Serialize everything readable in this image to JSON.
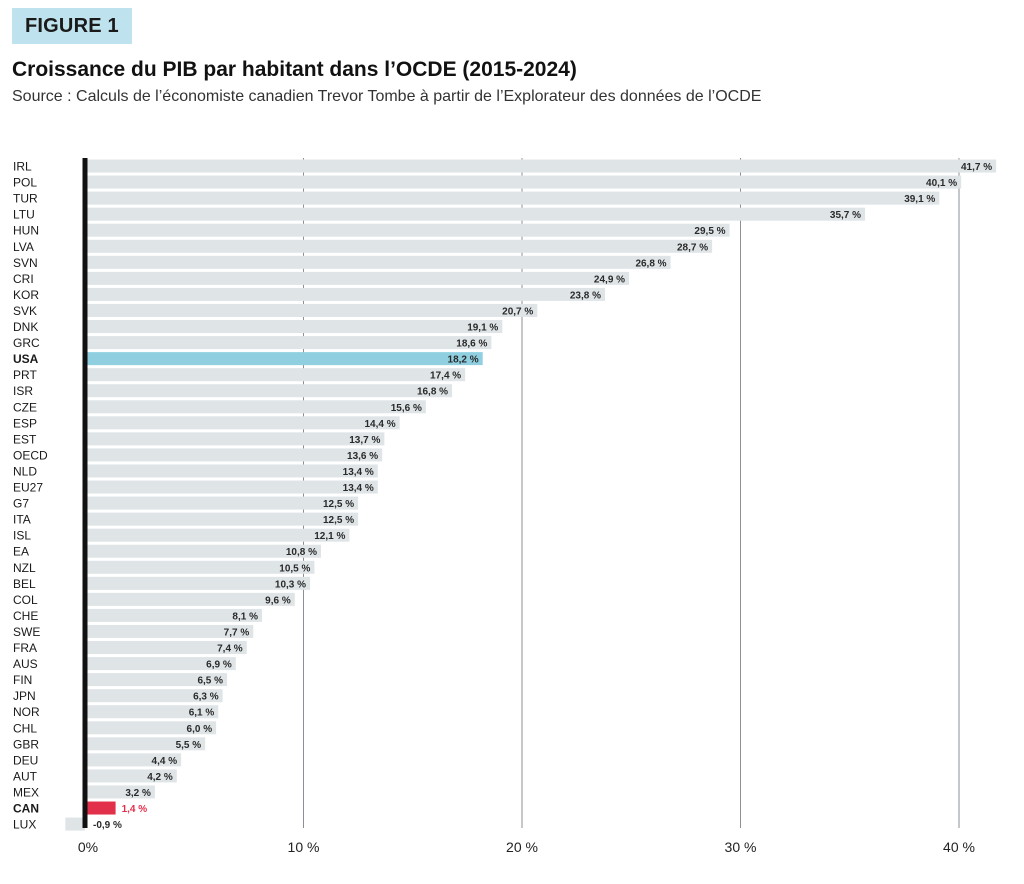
{
  "figure_label": "FIGURE 1",
  "title": "Croissance du PIB par habitant dans l’OCDE (2015-2024)",
  "subtitle": "Source : Calculs de l’économiste canadien Trevor Tombe à partir de l’Explorateur des données de l’OCDE",
  "colors": {
    "bar_default": "#dfe4e7",
    "bar_usa": "#8fcfe0",
    "bar_can": "#e3304a",
    "label_can": "#e3304a",
    "axis_zero": "#111111",
    "grid": "#8a9096",
    "figure_label_bg": "#bfe3ee"
  },
  "chart_data": {
    "type": "bar",
    "orientation": "horizontal",
    "categories": [
      "IRL",
      "POL",
      "TUR",
      "LTU",
      "HUN",
      "LVA",
      "SVN",
      "CRI",
      "KOR",
      "SVK",
      "DNK",
      "GRC",
      "USA",
      "PRT",
      "ISR",
      "CZE",
      "ESP",
      "EST",
      "OECD",
      "NLD",
      "EU27",
      "G7",
      "ITA",
      "ISL",
      "EA",
      "NZL",
      "BEL",
      "COL",
      "CHE",
      "SWE",
      "FRA",
      "AUS",
      "FIN",
      "JPN",
      "NOR",
      "CHL",
      "GBR",
      "DEU",
      "AUT",
      "MEX",
      "CAN",
      "LUX"
    ],
    "values": [
      41.7,
      40.1,
      39.1,
      35.7,
      29.5,
      28.7,
      26.8,
      24.9,
      23.8,
      20.7,
      19.1,
      18.6,
      18.2,
      17.4,
      16.8,
      15.6,
      14.4,
      13.7,
      13.6,
      13.4,
      13.4,
      12.5,
      12.5,
      12.1,
      10.8,
      10.5,
      10.3,
      9.6,
      8.1,
      7.7,
      7.4,
      6.9,
      6.5,
      6.3,
      6.1,
      6.0,
      5.5,
      4.4,
      4.2,
      3.2,
      1.4,
      -0.9
    ],
    "value_labels": [
      "41,7 %",
      "40,1 %",
      "39,1 %",
      "35,7 %",
      "29,5 %",
      "28,7 %",
      "26,8 %",
      "24,9 %",
      "23,8 %",
      "20,7 %",
      "19,1 %",
      "18,6 %",
      "18,2 %",
      "17,4 %",
      "16,8 %",
      "15,6 %",
      "14,4 %",
      "13,7 %",
      "13,6 %",
      "13,4 %",
      "13,4 %",
      "12,5 %",
      "12,5 %",
      "12,1 %",
      "10,8 %",
      "10,5 %",
      "10,3 %",
      "9,6 %",
      "8,1 %",
      "7,7 %",
      "7,4 %",
      "6,9 %",
      "6,5 %",
      "6,3 %",
      "6,1 %",
      "6,0 %",
      "5,5 %",
      "4,4 %",
      "4,2 %",
      "3,2 %",
      "1,4 %",
      "-0,9 %"
    ],
    "highlight": {
      "USA": "bar_usa",
      "CAN": "bar_can"
    },
    "bold_categories": [
      "USA",
      "CAN"
    ],
    "x_ticks": [
      0,
      10,
      20,
      30,
      40
    ],
    "x_tick_labels": [
      "0%",
      "10 %",
      "20 %",
      "30 %",
      "40 %"
    ],
    "xlim": [
      -1.1,
      42
    ],
    "grid": true,
    "legend": "none"
  }
}
